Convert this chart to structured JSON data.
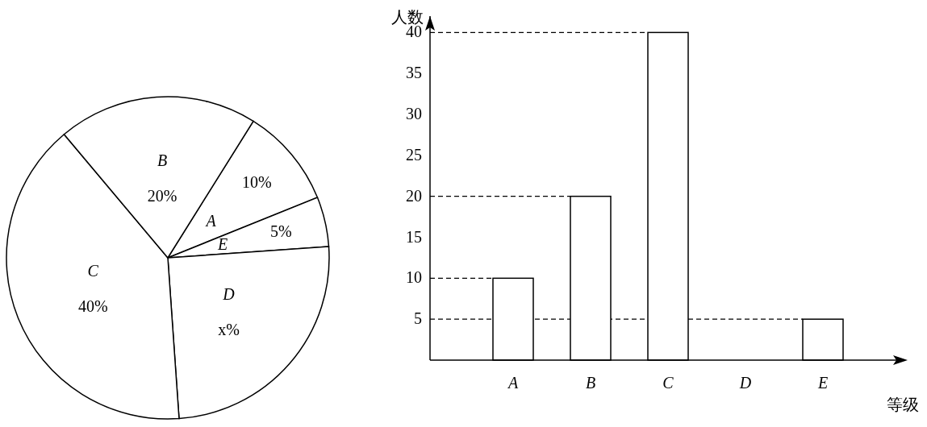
{
  "chart_data": [
    {
      "type": "pie",
      "categories": [
        "A",
        "E",
        "D",
        "C",
        "B"
      ],
      "values": [
        10,
        5,
        25,
        40,
        20
      ],
      "value_labels": [
        "10%",
        "5%",
        "x%",
        "40%",
        "20%"
      ],
      "colors": [
        "#ffffff",
        "#ffffff",
        "#ffffff",
        "#ffffff",
        "#ffffff"
      ]
    },
    {
      "type": "bar",
      "categories": [
        "A",
        "B",
        "C",
        "D",
        "E"
      ],
      "values": [
        10,
        20,
        40,
        null,
        5
      ],
      "color": "#ffffff",
      "xlabel": "等级",
      "ylabel": "人数",
      "ylim": [
        0,
        42
      ],
      "yticks": [
        5,
        10,
        15,
        20,
        25,
        30,
        35,
        40
      ],
      "grid": false,
      "ref_lines": [
        {
          "axis": "y",
          "value": 40,
          "line_style": "dashed"
        },
        {
          "axis": "y",
          "value": 20,
          "line_style": "dashed"
        },
        {
          "axis": "y",
          "value": 10,
          "line_style": "dashed"
        },
        {
          "axis": "y",
          "value": 5,
          "line_style": "dashed"
        }
      ]
    }
  ]
}
